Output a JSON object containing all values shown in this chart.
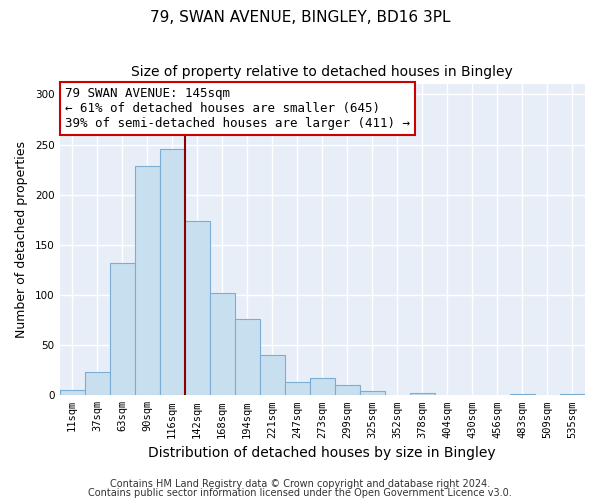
{
  "title": "79, SWAN AVENUE, BINGLEY, BD16 3PL",
  "subtitle": "Size of property relative to detached houses in Bingley",
  "xlabel": "Distribution of detached houses by size in Bingley",
  "ylabel": "Number of detached properties",
  "bar_labels": [
    "11sqm",
    "37sqm",
    "63sqm",
    "90sqm",
    "116sqm",
    "142sqm",
    "168sqm",
    "194sqm",
    "221sqm",
    "247sqm",
    "273sqm",
    "299sqm",
    "325sqm",
    "352sqm",
    "378sqm",
    "404sqm",
    "430sqm",
    "456sqm",
    "483sqm",
    "509sqm",
    "535sqm"
  ],
  "bar_values": [
    5,
    23,
    132,
    229,
    246,
    174,
    102,
    76,
    40,
    13,
    17,
    10,
    4,
    0,
    2,
    0,
    0,
    0,
    1,
    0,
    1
  ],
  "bar_color": "#c8dff0",
  "bar_edge_color": "#7badd4",
  "vline_x_index": 5,
  "vline_color": "#8b0000",
  "ylim": [
    0,
    310
  ],
  "yticks": [
    0,
    50,
    100,
    150,
    200,
    250,
    300
  ],
  "annotation_title": "79 SWAN AVENUE: 145sqm",
  "annotation_line1": "← 61% of detached houses are smaller (645)",
  "annotation_line2": "39% of semi-detached houses are larger (411) →",
  "annotation_box_color": "#ffffff",
  "annotation_box_edge": "#cc0000",
  "footer1": "Contains HM Land Registry data © Crown copyright and database right 2024.",
  "footer2": "Contains public sector information licensed under the Open Government Licence v3.0.",
  "bg_color": "#ffffff",
  "plot_bg_color": "#e8eef8",
  "grid_color": "#ffffff",
  "title_fontsize": 11,
  "subtitle_fontsize": 10,
  "xlabel_fontsize": 10,
  "ylabel_fontsize": 9,
  "tick_fontsize": 7.5,
  "footer_fontsize": 7,
  "annotation_fontsize": 9
}
